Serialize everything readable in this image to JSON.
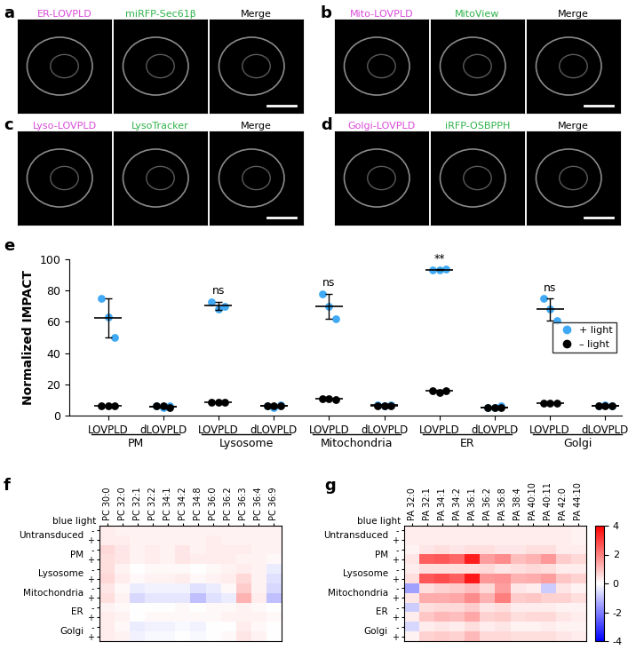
{
  "image_panels": [
    {
      "label": "a",
      "channels": [
        {
          "text": "ER-LOVPLD",
          "color": "#d94bd9"
        },
        {
          "text": "miRFP-Sec61β",
          "color": "#2fb34a"
        },
        {
          "text": "Merge",
          "color": "#000000"
        }
      ]
    },
    {
      "label": "b",
      "channels": [
        {
          "text": "Mito-LOVPLD",
          "color": "#d94bd9"
        },
        {
          "text": "MitoView",
          "color": "#2fb34a"
        },
        {
          "text": "Merge",
          "color": "#000000"
        }
      ]
    },
    {
      "label": "c",
      "channels": [
        {
          "text": "Lyso-LOVPLD",
          "color": "#d94bd9"
        },
        {
          "text": "LysoTracker",
          "color": "#2fb34a"
        },
        {
          "text": "Merge",
          "color": "#000000"
        }
      ]
    },
    {
      "label": "d",
      "channels": [
        {
          "text": "Golgi-LOVPLD",
          "color": "#d94bd9"
        },
        {
          "text": "iRFP-OSBPPH",
          "color": "#2fb34a"
        },
        {
          "text": "Merge",
          "color": "#000000"
        }
      ]
    }
  ],
  "chart_data": [
    {
      "type": "scatter",
      "panel_label": "e",
      "y_label": "Normalized IMPACT",
      "categories": [
        "LOVPLD",
        "dLOVPLD",
        "LOVPLD",
        "dLOVPLD",
        "LOVPLD",
        "dLOVPLD",
        "LOVPLD",
        "dLOVPLD",
        "LOVPLD",
        "dLOVPLD"
      ],
      "groups": [
        "PM",
        "Lysosome",
        "Mitochondria",
        "ER",
        "Golgi"
      ],
      "ylim": [
        0,
        100
      ],
      "yticks": [
        0,
        20,
        40,
        60,
        80,
        100
      ],
      "legend": "center right",
      "series": [
        {
          "name": "+ light",
          "color": "#3fa9f5",
          "marker": "o",
          "values": [
            [
              75,
              63,
              50
            ],
            [
              6,
              5,
              6
            ],
            [
              73,
              68,
              70
            ],
            [
              6,
              5,
              7
            ],
            [
              78,
              70,
              62
            ],
            [
              7,
              6,
              7
            ],
            [
              93,
              93,
              93.5
            ],
            [
              5,
              5,
              6
            ],
            [
              75,
              68,
              61
            ],
            [
              6,
              7,
              6
            ]
          ],
          "mean": [
            62.7,
            5.7,
            70.3,
            6,
            70,
            6.7,
            93.2,
            5.3,
            68,
            6.3
          ],
          "sd": [
            12.5,
            0.6,
            2.5,
            1,
            8,
            0.6,
            0.3,
            0.6,
            7,
            0.6
          ]
        },
        {
          "name": "– light",
          "color": "#000000",
          "marker": "o",
          "values": [
            [
              6,
              6,
              6
            ],
            [
              6,
              6,
              5
            ],
            [
              8.5,
              8.5,
              8.5
            ],
            [
              6,
              6,
              6
            ],
            [
              11,
              11,
              10
            ],
            [
              6,
              6,
              6
            ],
            [
              16,
              15,
              16
            ],
            [
              5,
              5,
              5
            ],
            [
              8,
              8,
              8
            ],
            [
              6,
              6,
              6
            ]
          ],
          "mean": [
            6,
            5.7,
            8.5,
            6,
            10.7,
            6,
            15.7,
            5,
            8,
            6
          ],
          "sd": [
            0.2,
            0.6,
            0.2,
            0.2,
            0.6,
            0.2,
            0.6,
            0.2,
            0.2,
            0.2
          ]
        }
      ],
      "annotations": [
        {
          "index": 2,
          "text": "ns"
        },
        {
          "index": 4,
          "text": "ns"
        },
        {
          "index": 6,
          "text": "**"
        },
        {
          "index": 8,
          "text": "ns"
        }
      ]
    },
    {
      "type": "heatmap",
      "panel_label": "f",
      "row_header": "blue light",
      "row_groups": [
        "Untransduced",
        "PM",
        "Lysosome",
        "Mitochondria",
        "ER",
        "Golgi"
      ],
      "row_labels": [
        "-",
        "+"
      ],
      "columns": [
        "PC 30:0",
        "PC 32:0",
        "PC 32:1",
        "PC 32:2",
        "PC 34:1",
        "PC 34:2",
        "PC 34:8",
        "PC 36:0",
        "PC 36:2",
        "PC 36:3",
        "PC 36:4",
        "PC 36:9"
      ],
      "color_range": [
        -4,
        4
      ],
      "values": [
        [
          0.3,
          0.2,
          0.2,
          0.2,
          0.2,
          0.2,
          0.2,
          0.2,
          0.2,
          0.2,
          0.2,
          0.2
        ],
        [
          0.3,
          0.3,
          0.2,
          0.2,
          0.2,
          0.2,
          0.2,
          0.3,
          0.2,
          0.2,
          0.2,
          0.2
        ],
        [
          0.6,
          0.4,
          0.2,
          0.3,
          0.2,
          0.4,
          0.2,
          0.3,
          0.3,
          0.3,
          0.2,
          0.2
        ],
        [
          0.5,
          0.4,
          0.2,
          0.3,
          0.2,
          0.4,
          0.3,
          0.3,
          0.3,
          0.2,
          0.2,
          0.1
        ],
        [
          0.5,
          0.2,
          0.0,
          0.1,
          0.1,
          0.1,
          0.0,
          0.1,
          0.2,
          0.3,
          0.2,
          -0.3
        ],
        [
          0.6,
          0.3,
          0.1,
          0.2,
          0.2,
          0.3,
          0.1,
          0.2,
          0.3,
          0.6,
          0.2,
          -0.5
        ],
        [
          0.4,
          0.1,
          -0.3,
          -0.2,
          -0.2,
          -0.2,
          -0.5,
          -0.3,
          0.1,
          0.8,
          0.2,
          -0.6
        ],
        [
          0.5,
          0.2,
          -0.6,
          -0.4,
          -0.4,
          -0.4,
          -1.0,
          -0.5,
          -0.3,
          1.2,
          0.3,
          -1.0
        ],
        [
          0.2,
          0.1,
          0.0,
          0.0,
          0.0,
          0.1,
          0.0,
          0.1,
          0.1,
          0.2,
          0.1,
          0.0
        ],
        [
          0.3,
          0.2,
          0.0,
          0.1,
          0.1,
          0.1,
          0.1,
          0.1,
          0.2,
          0.2,
          0.2,
          0.1
        ],
        [
          0.3,
          0.1,
          -0.3,
          -0.2,
          -0.2,
          -0.1,
          -0.2,
          0.0,
          0.0,
          0.3,
          0.1,
          0.0
        ],
        [
          0.3,
          0.2,
          -0.2,
          -0.1,
          -0.1,
          0.0,
          -0.1,
          0.0,
          0.1,
          0.4,
          0.2,
          0.0
        ]
      ]
    },
    {
      "type": "heatmap",
      "panel_label": "g",
      "row_header": "blue light",
      "row_groups": [
        "Untransduced",
        "PM",
        "Lysosome",
        "Mitochondria",
        "ER",
        "Golgi"
      ],
      "row_labels": [
        "-",
        "+"
      ],
      "columns": [
        "PA 32:0",
        "PA 32:1",
        "PA 34:1",
        "PA 34:2",
        "PA 36:1",
        "PA 36:2",
        "PA 36:8",
        "PA 38:4",
        "PA 40:10",
        "PA 40:11",
        "PA 42:0",
        "PA 44:10"
      ],
      "colorbar": {
        "range": [
          -4,
          4
        ],
        "ticks": [
          -4,
          -2,
          0,
          2,
          4
        ]
      },
      "values": [
        [
          0.3,
          0.3,
          0.3,
          0.3,
          0.3,
          0.3,
          0.3,
          0.3,
          0.3,
          0.3,
          0.3,
          0.2
        ],
        [
          0.3,
          0.3,
          0.3,
          0.3,
          0.3,
          0.3,
          0.3,
          0.3,
          0.3,
          0.3,
          0.3,
          0.2
        ],
        [
          0.2,
          0.4,
          0.5,
          0.4,
          0.5,
          0.5,
          0.4,
          0.4,
          0.5,
          0.5,
          0.3,
          0.3
        ],
        [
          0.4,
          2.5,
          2.6,
          2.4,
          3.5,
          1.5,
          1.8,
          1.0,
          1.2,
          1.6,
          0.8,
          0.6
        ],
        [
          0.3,
          0.5,
          0.5,
          0.5,
          0.5,
          0.6,
          0.4,
          0.5,
          0.6,
          0.5,
          0.3,
          0.3
        ],
        [
          0.5,
          2.6,
          2.8,
          2.5,
          3.6,
          1.6,
          1.7,
          1.2,
          1.3,
          1.5,
          0.9,
          0.7
        ],
        [
          -1.5,
          0.5,
          0.7,
          0.8,
          1.0,
          0.6,
          1.5,
          0.4,
          0.3,
          -0.8,
          0.4,
          0.2
        ],
        [
          0.4,
          1.3,
          1.3,
          1.4,
          1.8,
          1.2,
          2.0,
          0.8,
          0.9,
          0.7,
          0.7,
          0.5
        ],
        [
          -0.8,
          0.5,
          0.6,
          0.6,
          0.8,
          0.4,
          0.5,
          0.3,
          0.3,
          0.3,
          0.2,
          0.2
        ],
        [
          0.3,
          0.9,
          1.1,
          1.0,
          1.4,
          0.7,
          0.8,
          0.5,
          0.6,
          0.6,
          0.4,
          0.3
        ],
        [
          -0.6,
          0.3,
          0.4,
          0.3,
          0.5,
          0.3,
          0.4,
          0.2,
          0.2,
          0.3,
          0.2,
          0.2
        ],
        [
          0.2,
          0.7,
          0.8,
          0.7,
          1.1,
          0.6,
          0.6,
          0.5,
          0.5,
          0.5,
          0.4,
          0.3
        ]
      ]
    }
  ]
}
